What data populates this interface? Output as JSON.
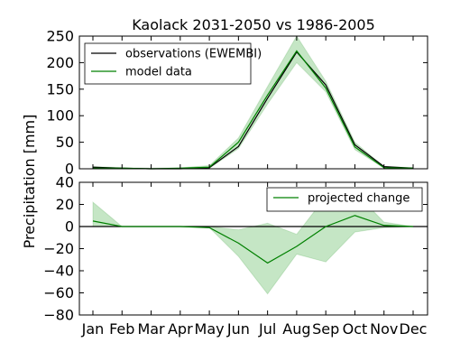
{
  "figure": {
    "title": "Kaolack 2031-2050 vs 1986-2005",
    "ylabel": "Precipitation [mm]"
  },
  "colors": {
    "observations": "#000000",
    "model": "#008000",
    "band": "#9fd59f",
    "zero_line": "#000000"
  },
  "chart_data": [
    {
      "type": "line",
      "title": "Kaolack 2031-2050 vs 1986-2005",
      "x": [
        "Jan",
        "Feb",
        "Mar",
        "Apr",
        "May",
        "Jun",
        "Jul",
        "Aug",
        "Sep",
        "Oct",
        "Nov",
        "Dec"
      ],
      "ylim": [
        0,
        250
      ],
      "yticks": [
        0,
        50,
        100,
        150,
        200,
        250
      ],
      "grid": false,
      "legend_position": "top-left",
      "series": [
        {
          "name": "observations (EWEMBI)",
          "color": "#000000",
          "values": [
            3,
            1,
            0,
            0,
            2,
            42,
            133,
            220,
            158,
            45,
            4,
            1
          ]
        },
        {
          "name": "model data",
          "color": "#008000",
          "values": [
            1,
            1,
            0,
            1,
            3,
            50,
            139,
            222,
            152,
            41,
            2,
            1
          ]
        }
      ],
      "range_band": {
        "lower": [
          0,
          0,
          0,
          0,
          1,
          38,
          122,
          200,
          145,
          36,
          1,
          0
        ],
        "upper": [
          4,
          2,
          1,
          2,
          6,
          58,
          155,
          250,
          165,
          50,
          4,
          2
        ]
      }
    },
    {
      "type": "line",
      "x": [
        "Jan",
        "Feb",
        "Mar",
        "Apr",
        "May",
        "Jun",
        "Jul",
        "Aug",
        "Sep",
        "Oct",
        "Nov",
        "Dec"
      ],
      "ylim": [
        -80,
        40
      ],
      "yticks": [
        -80,
        -60,
        -40,
        -20,
        0,
        20,
        40
      ],
      "grid": false,
      "legend_position": "top-right",
      "zero_line": true,
      "series": [
        {
          "name": "projected change",
          "color": "#008000",
          "values": [
            5,
            0,
            0,
            0,
            -1,
            -15,
            -33,
            -18,
            0,
            10,
            1,
            0
          ]
        }
      ],
      "range_band": {
        "lower": [
          0,
          0,
          0,
          0,
          -1,
          -27,
          -61,
          -25,
          -32,
          -5,
          -1,
          0
        ],
        "upper": [
          22,
          0,
          0,
          0,
          0,
          -3,
          3,
          -7,
          27,
          31,
          4,
          0
        ]
      }
    }
  ]
}
